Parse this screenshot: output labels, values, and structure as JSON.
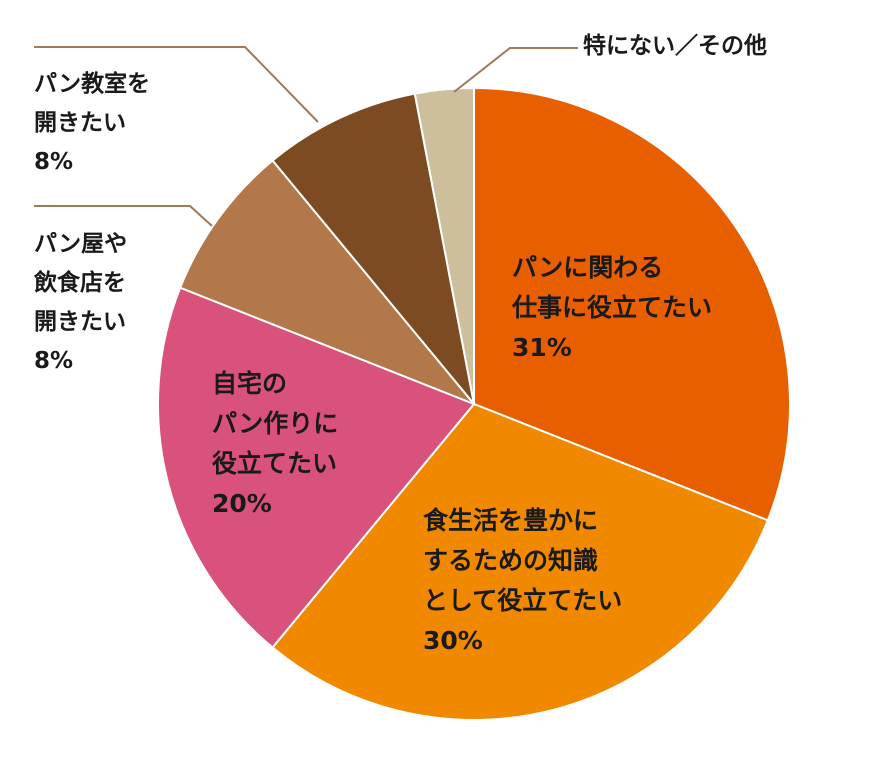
{
  "chart_data": {
    "type": "pie",
    "title": "",
    "start": "top",
    "direction": "clockwise",
    "slices": [
      {
        "label_lines": [
          "パンに関わる",
          "仕事に役立てたい"
        ],
        "value": 31,
        "value_label": "31%",
        "color": "#e85f00",
        "label_position": "inside"
      },
      {
        "label_lines": [
          "食生活を豊かに",
          "するための知識",
          "として役立てたい"
        ],
        "value": 30,
        "value_label": "30%",
        "color": "#f08800",
        "label_position": "inside"
      },
      {
        "label_lines": [
          "自宅の",
          "パン作りに",
          "役立てたい"
        ],
        "value": 20,
        "value_label": "20%",
        "color": "#d9527b",
        "label_position": "inside"
      },
      {
        "label_lines": [
          "パン屋や",
          "飲食店を",
          "開きたい"
        ],
        "value": 8,
        "value_label": "8%",
        "color": "#b27849",
        "label_position": "outside-left"
      },
      {
        "label_lines": [
          "パン教室を",
          "開きたい"
        ],
        "value": 8,
        "value_label": "8%",
        "color": "#7d4b21",
        "label_position": "outside-left"
      },
      {
        "label_lines": [
          "特にない／その他"
        ],
        "value": 3,
        "value_label": "",
        "color": "#cdbe9c",
        "label_position": "outside-top"
      }
    ],
    "leader_line_color": "#9c7a5a"
  }
}
